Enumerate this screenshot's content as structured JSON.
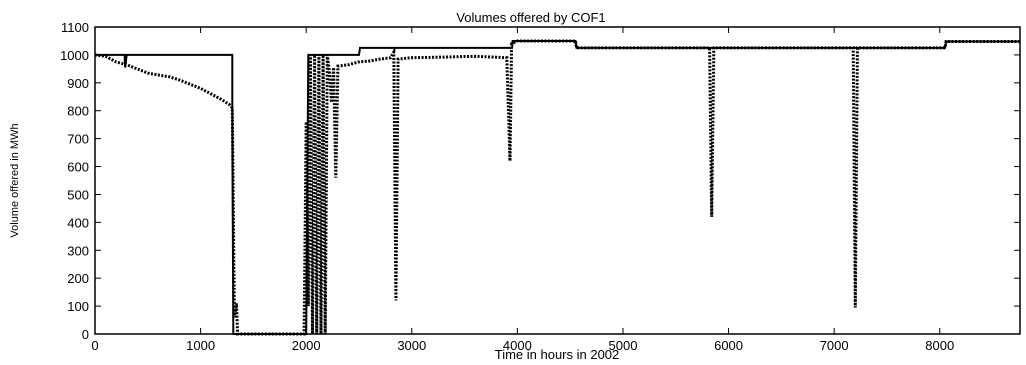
{
  "chart_data": {
    "type": "line",
    "title": "Volumes offered by COF1",
    "xlabel": "Time in hours in 2002",
    "ylabel": "Volume offered in MWh",
    "xlim": [
      0,
      8760
    ],
    "ylim": [
      0,
      1100
    ],
    "xticks": [
      0,
      1000,
      2000,
      3000,
      4000,
      5000,
      6000,
      7000,
      8000
    ],
    "yticks": [
      0,
      100,
      200,
      300,
      400,
      500,
      600,
      700,
      800,
      900,
      1000,
      1100
    ],
    "grid": false,
    "legend": "none",
    "series": [
      {
        "style": "solid",
        "color": "#000000",
        "points": [
          [
            0,
            1000
          ],
          [
            280,
            1000
          ],
          [
            285,
            955
          ],
          [
            300,
            1000
          ],
          [
            1300,
            1000
          ],
          [
            1300,
            820
          ],
          [
            1310,
            0
          ],
          [
            2000,
            0
          ],
          [
            2020,
            1000
          ],
          [
            2500,
            1000
          ],
          [
            2510,
            1025
          ],
          [
            3950,
            1025
          ],
          [
            3955,
            1050
          ],
          [
            4550,
            1050
          ],
          [
            4560,
            1025
          ],
          [
            8050,
            1025
          ],
          [
            8060,
            1048
          ],
          [
            8760,
            1048
          ]
        ]
      },
      {
        "style": "dotted",
        "color": "#000000",
        "points": [
          [
            0,
            1000
          ],
          [
            100,
            995
          ],
          [
            200,
            975
          ],
          [
            300,
            965
          ],
          [
            400,
            950
          ],
          [
            500,
            935
          ],
          [
            600,
            928
          ],
          [
            700,
            922
          ],
          [
            800,
            910
          ],
          [
            900,
            895
          ],
          [
            1000,
            880
          ],
          [
            1100,
            860
          ],
          [
            1200,
            840
          ],
          [
            1280,
            820
          ],
          [
            1300,
            810
          ],
          [
            1320,
            60
          ],
          [
            1340,
            110
          ],
          [
            1350,
            0
          ],
          [
            1980,
            0
          ],
          [
            2000,
            760
          ],
          [
            2020,
            100
          ],
          [
            2040,
            1000
          ],
          [
            2060,
            0
          ],
          [
            2080,
            1000
          ],
          [
            2100,
            0
          ],
          [
            2120,
            1000
          ],
          [
            2140,
            0
          ],
          [
            2160,
            1000
          ],
          [
            2180,
            0
          ],
          [
            2200,
            1000
          ],
          [
            2220,
            940
          ],
          [
            2240,
            830
          ],
          [
            2260,
            955
          ],
          [
            2280,
            560
          ],
          [
            2300,
            960
          ],
          [
            2400,
            965
          ],
          [
            2500,
            975
          ],
          [
            2600,
            978
          ],
          [
            2700,
            985
          ],
          [
            2800,
            990
          ],
          [
            2830,
            1010
          ],
          [
            2850,
            120
          ],
          [
            2870,
            985
          ],
          [
            3000,
            990
          ],
          [
            3300,
            992
          ],
          [
            3600,
            995
          ],
          [
            3900,
            990
          ],
          [
            3930,
            620
          ],
          [
            3945,
            1040
          ],
          [
            4000,
            1050
          ],
          [
            4550,
            1050
          ],
          [
            4560,
            1025
          ],
          [
            5820,
            1025
          ],
          [
            5840,
            420
          ],
          [
            5860,
            1025
          ],
          [
            7180,
            1025
          ],
          [
            7200,
            95
          ],
          [
            7220,
            1025
          ],
          [
            8050,
            1025
          ],
          [
            8060,
            1048
          ],
          [
            8760,
            1048
          ]
        ]
      }
    ]
  }
}
